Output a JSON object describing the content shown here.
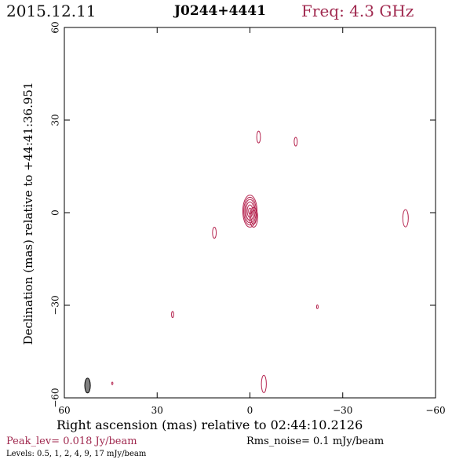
{
  "header": {
    "date": "2015.12.11",
    "source": "J0244+4441",
    "freq": "Freq: 4.3 GHz"
  },
  "colors": {
    "contour": "#b5244f",
    "accent_text": "#a0294f",
    "beam": "#808080",
    "axis": "#000000"
  },
  "footer": {
    "peak": "Peak_lev=  0.018 Jy/beam",
    "rms": "Rms_noise=  0.1 mJy/beam",
    "levels": "Levels: 0.5,   1,   2,   4,   9,  17 mJy/beam"
  },
  "chart_data": {
    "type": "contour",
    "xlabel": "Right ascension (mas) relative to 02:44:10.2126",
    "ylabel": "Declination (mas) relative to +44:41:36.951",
    "xlim": [
      60,
      -60
    ],
    "ylim": [
      -60,
      60
    ],
    "x_ticks": [
      60,
      30,
      0,
      -30,
      -60
    ],
    "y_ticks": [
      60,
      30,
      0,
      -30,
      -60
    ],
    "x_tick_labels": [
      "60",
      "30",
      "0",
      "−30",
      "−60"
    ],
    "y_tick_labels": [
      "60",
      "30",
      "0",
      "−30",
      "−60"
    ],
    "contour_levels_mJy": [
      0.5,
      1,
      2,
      4,
      9,
      17
    ],
    "components": [
      {
        "x": 0,
        "y": 0.5,
        "contours": [
          [
            2.3,
            5.2
          ],
          [
            2.0,
            4.5
          ],
          [
            1.65,
            3.8
          ],
          [
            1.3,
            3.0
          ],
          [
            0.9,
            2.0
          ],
          [
            0.45,
            1.0
          ]
        ]
      },
      {
        "x": -1.2,
        "y": -1.5,
        "contours": [
          [
            1.3,
            3.2
          ],
          [
            0.9,
            2.2
          ]
        ]
      },
      {
        "x": -2.8,
        "y": 24.5,
        "contours": [
          [
            0.6,
            1.9
          ]
        ]
      },
      {
        "x": -14.8,
        "y": 23.0,
        "contours": [
          [
            0.5,
            1.4
          ]
        ]
      },
      {
        "x": 11.5,
        "y": -6.5,
        "contours": [
          [
            0.6,
            1.8
          ]
        ]
      },
      {
        "x": -50.3,
        "y": -1.8,
        "contours": [
          [
            0.9,
            2.8
          ]
        ]
      },
      {
        "x": 25.0,
        "y": -33.0,
        "contours": [
          [
            0.35,
            1.0
          ]
        ]
      },
      {
        "x": -21.8,
        "y": -30.5,
        "contours": [
          [
            0.25,
            0.6
          ]
        ]
      },
      {
        "x": -4.5,
        "y": -55.5,
        "contours": [
          [
            0.8,
            2.8
          ]
        ]
      },
      {
        "x": 44.5,
        "y": -55.3,
        "contours": [
          [
            0.2,
            0.4
          ]
        ]
      }
    ],
    "beam": {
      "x": 52.5,
      "y": -56.0,
      "rx_mas": 0.9,
      "ry_mas": 2.4
    }
  }
}
